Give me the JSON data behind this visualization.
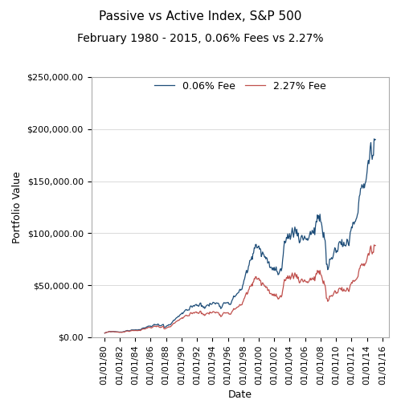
{
  "title": "Passive vs Active Index, S&P 500",
  "subtitle": "February 1980 - 2015, 0.06% Fees vs 2.27%",
  "legend_labels": [
    "0.06% Fee",
    "2.27% Fee"
  ],
  "line_colors": [
    "#1f4e79",
    "#c0504d"
  ],
  "xlabel": "Date",
  "ylabel": "Portfolio Value",
  "ylim": [
    0,
    250000
  ],
  "yticks": [
    0,
    50000,
    100000,
    150000,
    200000,
    250000
  ],
  "fee_low": 0.0006,
  "fee_high": 0.0227,
  "initial_investment": 10000,
  "background_color": "#ffffff",
  "title_fontsize": 11,
  "subtitle_fontsize": 10,
  "tick_fontsize": 8,
  "label_fontsize": 9
}
